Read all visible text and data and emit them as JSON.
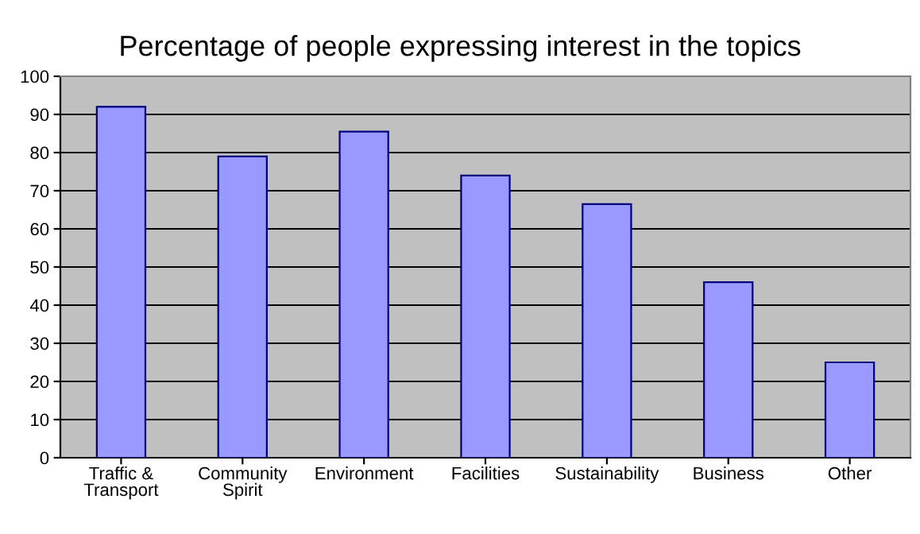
{
  "chart_data": {
    "type": "bar",
    "title": "Percentage of people expressing interest in the topics",
    "categories": [
      "Traffic &\nTransport",
      "Community\nSpirit",
      "Environment",
      "Facilities",
      "Sustainability",
      "Business",
      "Other"
    ],
    "values": [
      92,
      79,
      85.5,
      74,
      66.5,
      46,
      25
    ],
    "color": "#9999ff",
    "ylim": [
      0,
      100
    ],
    "yticks": [
      0,
      10,
      20,
      30,
      40,
      50,
      60,
      70,
      80,
      90,
      100
    ],
    "grid": "y",
    "legend": false
  }
}
